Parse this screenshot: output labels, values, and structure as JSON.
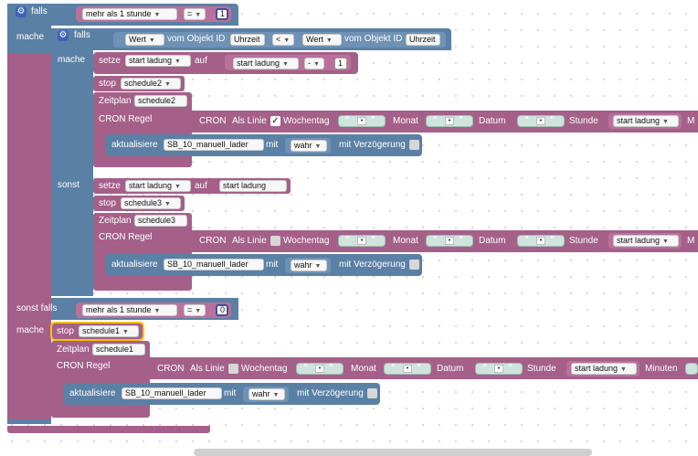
{
  "kw": {
    "falls": "falls",
    "mache": "mache",
    "sonst": "sonst",
    "sonst_falls": "sonst falls",
    "setze": "setze",
    "auf": "auf",
    "stop": "stop",
    "zeitplan": "Zeitplan",
    "cron_regel": "CRON Regel",
    "cron": "CRON",
    "als_linie": "Als Linie",
    "wochentag": "Wochentag",
    "monat": "Monat",
    "datum": "Datum",
    "stunde": "Stunde",
    "minuten": "Minuten",
    "m_cut": "M",
    "aktualisiere": "aktualisiere",
    "mit": "mit",
    "mit_verzoegerung": "mit Verzögerung",
    "wert": "Wert",
    "vom_objekt_id": "vom Objekt ID",
    "uhrzeit": "Uhrzeit"
  },
  "vars": {
    "mehr_als": "mehr als 1 stunde",
    "start_ladung": "start ladung",
    "schedule1": "schedule1",
    "schedule2": "schedule2",
    "schedule3": "schedule3",
    "object": "SB_10_manuell_lader",
    "wahr": "wahr"
  },
  "ops": {
    "eq": "=",
    "lt": "<",
    "minus": "-"
  },
  "numbers": {
    "one": "1",
    "zero": "0"
  },
  "checkboxes": {
    "als_linie_1": "✓",
    "als_linie_2": "",
    "als_linie_3": ""
  }
}
